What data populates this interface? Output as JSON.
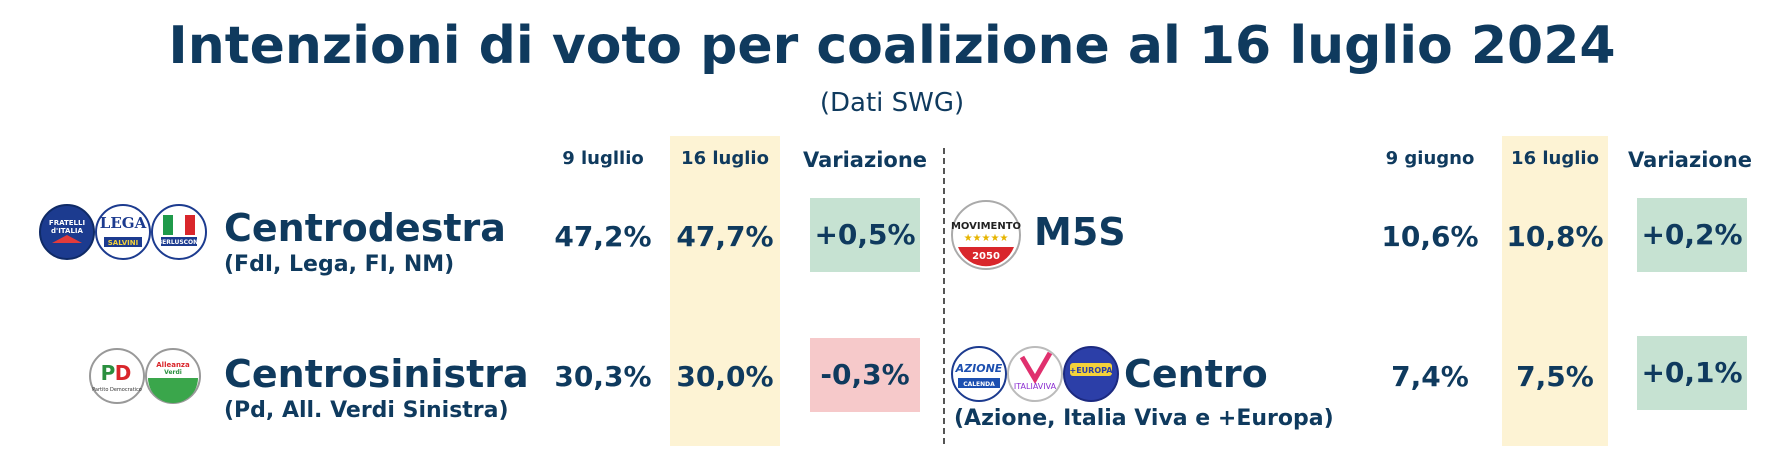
{
  "title": "Intenzioni di voto per coalizione al 16 luglio 2024",
  "subtitle": "(Dati SWG)",
  "colors": {
    "text": "#0f3a5e",
    "highlight": "#fdf3d4",
    "positive": "#c6e2d2",
    "negative": "#f6c9ca"
  },
  "left_table": {
    "headers": {
      "prev": "9 lugllio",
      "curr": "16 luglio",
      "change": "Variazione"
    },
    "rows": [
      {
        "name": "Centrodestra",
        "parties": "(FdI, Lega, FI, NM)",
        "prev": "47,2%",
        "curr": "47,7%",
        "change": "+0,5%",
        "logos": [
          {
            "icon": "fratelli-d-italia-logo",
            "text": "FRATELLI d'ITALIA"
          },
          {
            "icon": "lega-logo",
            "text": "LEGA SALVINI PREMIER"
          },
          {
            "icon": "forza-italia-logo",
            "text": "FORZA ITALIA BERLUSCONI PRESIDENTE"
          }
        ]
      },
      {
        "name": "Centrosinistra",
        "parties": "(Pd, All. Verdi Sinistra)",
        "prev": "30,3%",
        "curr": "30,0%",
        "change": "-0,3%",
        "logos": [
          {
            "icon": "partito-democratico-logo",
            "text": "PD Partito Democratico"
          },
          {
            "icon": "alleanza-verdi-sinistra-logo",
            "text": "Alleanza Verdi Sinistra"
          }
        ]
      }
    ]
  },
  "right_table": {
    "headers": {
      "prev": "9 giugno",
      "curr": "16 luglio",
      "change": "Variazione"
    },
    "rows": [
      {
        "name": "M5S",
        "parties": "",
        "prev": "10,6%",
        "curr": "10,8%",
        "change": "+0,2%",
        "logos": [
          {
            "icon": "movimento-5-stelle-logo",
            "text": "MOVIMENTO 2050"
          }
        ]
      },
      {
        "name": "Centro",
        "parties": "(Azione, Italia Viva e +Europa)",
        "prev": "7,4%",
        "curr": "7,5%",
        "change": "+0,1%",
        "logos": [
          {
            "icon": "azione-logo",
            "text": "AZIONE CALENDA"
          },
          {
            "icon": "italia-viva-logo",
            "text": "ITALIA VIVA"
          },
          {
            "icon": "piu-europa-logo",
            "text": "+EUROPA"
          }
        ]
      }
    ]
  },
  "chart_data": {
    "type": "table",
    "title": "Intenzioni di voto per coalizione al 16 luglio 2024",
    "subtitle": "(Dati SWG)",
    "tables": [
      {
        "columns": [
          "9 lugllio",
          "16 luglio",
          "Variazione"
        ],
        "rows": [
          {
            "label": "Centrodestra",
            "values": [
              47.2,
              47.7,
              0.5
            ]
          },
          {
            "label": "Centrosinistra",
            "values": [
              30.3,
              30.0,
              -0.3
            ]
          }
        ]
      },
      {
        "columns": [
          "9 giugno",
          "16 luglio",
          "Variazione"
        ],
        "rows": [
          {
            "label": "M5S",
            "values": [
              10.6,
              10.8,
              0.2
            ]
          },
          {
            "label": "Centro",
            "values": [
              7.4,
              7.5,
              0.1
            ]
          }
        ]
      }
    ]
  }
}
